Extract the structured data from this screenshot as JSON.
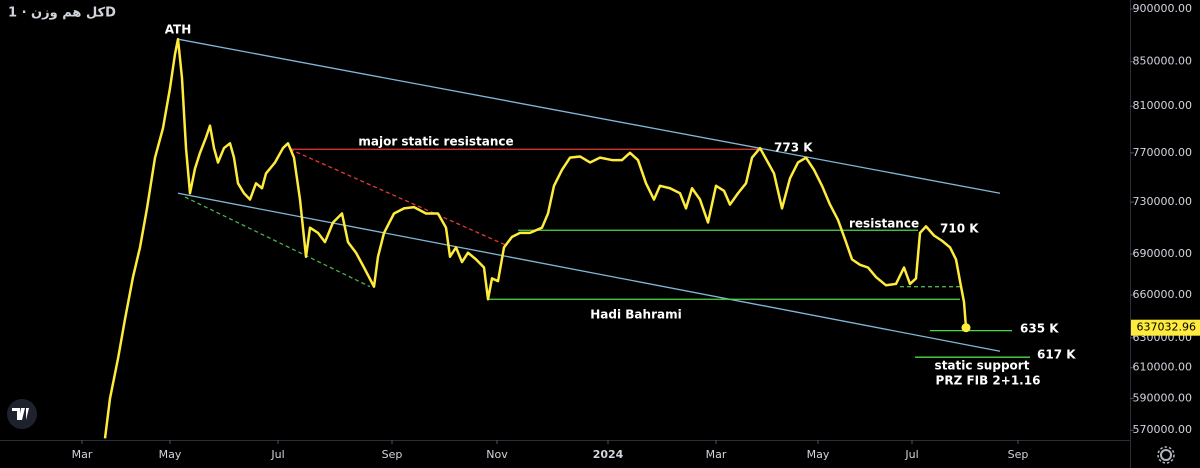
{
  "chart_data": {
    "type": "line",
    "title": "کل هم وزن · 1D",
    "log_scale": true,
    "grid": false,
    "xlim": [
      0,
      226
    ],
    "ylim": [
      564000,
      908800
    ],
    "xticks": [
      {
        "value": 16.4,
        "label": "Mar"
      },
      {
        "value": 34,
        "label": "May"
      },
      {
        "value": 55.6,
        "label": "Jul"
      },
      {
        "value": 78.4,
        "label": "Sep"
      },
      {
        "value": 99.4,
        "label": "Nov"
      },
      {
        "value": 121.6,
        "label": "2024"
      },
      {
        "value": 143.2,
        "label": "Mar"
      },
      {
        "value": 163.6,
        "label": "May"
      },
      {
        "value": 182.4,
        "label": "Jul"
      },
      {
        "value": 203.6,
        "label": "Sep"
      }
    ],
    "yticks": [
      {
        "value": 900000,
        "label": "900000.00"
      },
      {
        "value": 850000,
        "label": "850000.00"
      },
      {
        "value": 810000,
        "label": "810000.00"
      },
      {
        "value": 770000,
        "label": "770000.00"
      },
      {
        "value": 730000,
        "label": "730000.00"
      },
      {
        "value": 690000,
        "label": "690000.00"
      },
      {
        "value": 660000,
        "label": "660000.00"
      },
      {
        "value": 630000,
        "label": "630000.00"
      },
      {
        "value": 610000,
        "label": "610000.00"
      },
      {
        "value": 590000,
        "label": "590000.00"
      },
      {
        "value": 570000,
        "label": "570000.00"
      }
    ],
    "x": [
      21,
      22,
      23.6,
      25,
      26.6,
      28,
      29.4,
      31,
      32.6,
      34,
      35,
      35.6,
      36.4,
      37.2,
      38,
      39,
      40,
      41.2,
      42,
      42.8,
      43.6,
      44.8,
      46,
      46.8,
      47.6,
      48.8,
      50,
      51.2,
      52.4,
      53.2,
      55,
      56.6,
      57.6,
      58.8,
      60,
      61.2,
      62,
      63.6,
      65,
      66.6,
      68.4,
      69.6,
      71.2,
      72.8,
      74.8,
      75.6,
      76.8,
      78.8,
      80.8,
      82.8,
      85.2,
      87.6,
      89.2,
      90,
      91.2,
      92.4,
      93.6,
      95.2,
      96.8,
      97.6,
      98.4,
      99.6,
      100.8,
      102.4,
      104,
      106,
      108.4,
      109.6,
      110.8,
      112.4,
      114,
      116,
      118,
      120,
      122.4,
      124.4,
      126,
      127.6,
      129.2,
      130.8,
      132,
      134,
      136,
      137.2,
      138.4,
      140,
      141.6,
      143.2,
      144.8,
      146,
      147.6,
      149.2,
      150.4,
      152,
      153.6,
      154.8,
      156.4,
      158,
      159.6,
      161.2,
      162.8,
      164.4,
      166,
      167.6,
      169.2,
      170.4,
      172,
      173.6,
      175.2,
      177.2,
      179.2,
      180.8,
      182,
      183.2,
      184,
      185.2,
      186.8,
      188.4,
      190,
      191.2,
      192,
      192.8,
      193.2
    ],
    "series": [
      {
        "color": "#ffeb3b",
        "values": [
          565000,
          590000,
          616000,
          643000,
          673000,
          695000,
          725000,
          766000,
          791000,
          826000,
          857000,
          871000,
          835000,
          774000,
          737000,
          757000,
          770000,
          783000,
          793000,
          774000,
          762000,
          774000,
          778000,
          766000,
          745000,
          737000,
          732000,
          745000,
          741000,
          753000,
          762000,
          774000,
          778000,
          766000,
          732000,
          688000,
          710000,
          706000,
          699000,
          714000,
          721000,
          699000,
          691000,
          680000,
          666000,
          688000,
          706000,
          721000,
          725000,
          726000,
          721000,
          721000,
          710000,
          688000,
          695000,
          684000,
          691000,
          686000,
          680000,
          657000,
          672000,
          670000,
          695000,
          703000,
          706000,
          706000,
          710000,
          721000,
          743000,
          756000,
          766000,
          767000,
          762000,
          766000,
          764000,
          764000,
          770000,
          764000,
          745000,
          732000,
          743000,
          741000,
          737000,
          725000,
          741000,
          732000,
          714000,
          743000,
          739000,
          728000,
          737000,
          745000,
          766000,
          774000,
          762000,
          753000,
          725000,
          749000,
          762000,
          766000,
          756000,
          743000,
          728000,
          716000,
          699000,
          686000,
          682000,
          680000,
          673000,
          667000,
          668000,
          680000,
          668000,
          672000,
          706000,
          711000,
          704000,
          700000,
          695000,
          686000,
          670000,
          655000,
          637032.96
        ]
      }
    ],
    "drawings": [
      {
        "color": "#7fb8d8",
        "dash": false,
        "x": [
          35.6,
          200
        ],
        "y": [
          871000,
          737000
        ]
      },
      {
        "color": "#7fb8d8",
        "dash": false,
        "x": [
          35.6,
          200
        ],
        "y": [
          737000,
          621000
        ]
      },
      {
        "color": "#e53935",
        "dash": false,
        "x": [
          58,
          152
        ],
        "y": [
          773000,
          773000
        ]
      },
      {
        "color": "#e53935",
        "dash": true,
        "x": [
          58,
          101
        ],
        "y": [
          773000,
          697000
        ]
      },
      {
        "color": "#4caf50",
        "dash": true,
        "x": [
          37,
          74
        ],
        "y": [
          734000,
          666000
        ]
      },
      {
        "color": "#4cd94c",
        "dash": false,
        "x": [
          103.6,
          183.6
        ],
        "y": [
          708000,
          708000
        ]
      },
      {
        "color": "#4cd94c",
        "dash": false,
        "x": [
          97.6,
          192
        ],
        "y": [
          657000,
          657000
        ]
      },
      {
        "color": "#4caf50",
        "dash": true,
        "x": [
          180,
          192
        ],
        "y": [
          666000,
          666000
        ]
      },
      {
        "color": "#4cd94c",
        "dash": false,
        "x": [
          186,
          202.4
        ],
        "y": [
          635000,
          635000
        ]
      },
      {
        "color": "#4cd94c",
        "dash": false,
        "x": [
          183,
          206
        ],
        "y": [
          617000,
          617000
        ]
      }
    ],
    "annotations": [
      "ATH",
      "major static resistance",
      "773 K",
      "resistance",
      "710 K",
      "Hadi Bahrami",
      "635 K",
      "617 K",
      "static support",
      "PRZ FIB 2+1.16"
    ]
  }
}
